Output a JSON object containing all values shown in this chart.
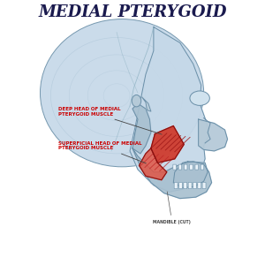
{
  "title": "MEDIAL PTERYGOID",
  "title_fontsize": 13,
  "title_color": "#1a1a4e",
  "title_weight": "bold",
  "background_color": "#ffffff",
  "label1": "DEEP HEAD OF MEDIAL\nPTERYGOID MUSCLE",
  "label2": "SUPERFICIAL HEAD OF MEDIAL\nPTERYGOID MUSCLE",
  "label3": "MANDIBLE (CUT)",
  "label_color": "#cc0000",
  "label3_color": "#444444",
  "skull_fill": "#c5d8e8",
  "skull_fill2": "#b5cad8",
  "skull_stroke": "#6a8fa8",
  "inner_line": "#a0bcd0",
  "muscle_deep": "#d03020",
  "muscle_sup": "#e05545",
  "muscle_stroke": "#881010"
}
